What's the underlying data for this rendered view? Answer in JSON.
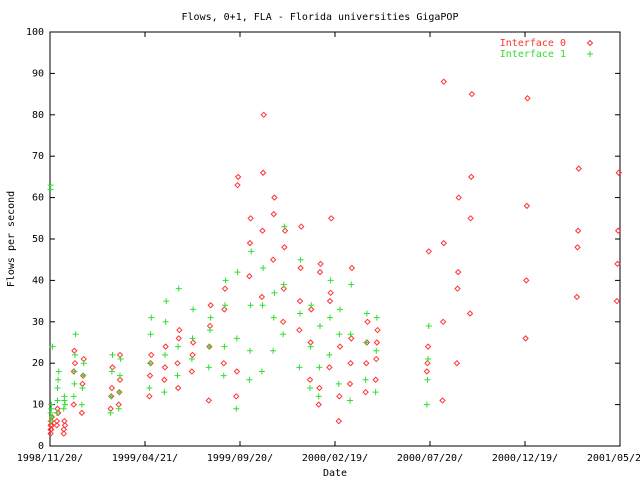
{
  "chart_data": {
    "type": "scatter",
    "title": "Flows, 0+1, FLA - Florida universities GigaPOP",
    "xlabel": "Date",
    "ylabel": "Flows per second",
    "ylim": [
      0,
      100
    ],
    "xlim": [
      "1998-11-20",
      "2001-05-20"
    ],
    "x_ticks": [
      "1998/11/20/",
      "1999/04/21/",
      "1999/09/20/",
      "2000/02/19/",
      "2000/07/20/",
      "2000/12/19/",
      "2001/05/20/"
    ],
    "y_ticks": [
      "0",
      "10",
      "20",
      "30",
      "40",
      "50",
      "60",
      "70",
      "80",
      "90",
      "100"
    ],
    "grid": false,
    "legend_position": "top-right",
    "series": [
      {
        "name": "Interface 0",
        "color": "#ff3333",
        "marker": "diamond",
        "x": [
          "1998-11-21",
          "1998-11-21",
          "1998-11-21",
          "1998-11-22",
          "1998-11-22",
          "1998-11-23",
          "1998-11-23",
          "1998-12-01",
          "1998-12-01",
          "1998-12-02",
          "1998-12-03",
          "1998-12-12",
          "1998-12-12",
          "1998-12-13",
          "1998-12-14",
          "1998-12-28",
          "1998-12-28",
          "1998-12-29",
          "1998-12-30",
          "1999-01-10",
          "1999-01-11",
          "1999-01-12",
          "1999-01-13",
          "1999-02-25",
          "1999-02-26",
          "1999-02-27",
          "1999-02-28",
          "1999-03-10",
          "1999-03-11",
          "1999-03-12",
          "1999-03-12",
          "1999-04-28",
          "1999-04-29",
          "1999-04-30",
          "1999-05-01",
          "1999-05-22",
          "1999-05-23",
          "1999-05-24",
          "1999-06-12",
          "1999-06-13",
          "1999-06-14",
          "1999-06-15",
          "1999-07-05",
          "1999-07-06",
          "1999-07-07",
          "1999-08-01",
          "1999-08-02",
          "1999-08-03",
          "1999-08-04",
          "1999-08-25",
          "1999-08-26",
          "1999-08-27",
          "1999-09-14",
          "1999-09-15",
          "1999-09-16",
          "1999-09-17",
          "1999-10-05",
          "1999-10-06",
          "1999-10-07",
          "1999-10-25",
          "1999-10-26",
          "1999-10-27",
          "1999-10-28",
          "1999-11-12",
          "1999-11-13",
          "1999-11-14",
          "1999-11-28",
          "1999-11-29",
          "1999-11-30",
          "1999-12-01",
          "1999-12-24",
          "1999-12-25",
          "1999-12-26",
          "1999-12-27",
          "2000-01-10",
          "2000-01-11",
          "2000-01-12",
          "2000-01-24",
          "2000-01-25",
          "2000-01-26",
          "2000-01-27",
          "2000-02-10",
          "2000-02-11",
          "2000-02-12",
          "2000-02-13",
          "2000-02-25",
          "2000-02-26",
          "2000-02-27",
          "2000-03-14",
          "2000-03-15",
          "2000-03-16",
          "2000-03-17",
          "2000-04-08",
          "2000-04-09",
          "2000-04-10",
          "2000-04-11",
          "2000-04-24",
          "2000-04-25",
          "2000-04-26",
          "2000-04-27",
          "2000-07-15",
          "2000-07-16",
          "2000-07-17",
          "2000-07-18",
          "2000-08-09",
          "2000-08-10",
          "2000-08-11",
          "2000-08-11",
          "2000-09-01",
          "2000-09-02",
          "2000-09-03",
          "2000-09-04",
          "2000-09-22",
          "2000-09-23",
          "2000-09-24",
          "2000-09-25",
          "2000-12-20",
          "2000-12-21",
          "2000-12-22",
          "2000-12-23",
          "2001-03-12",
          "2001-03-13",
          "2001-03-14",
          "2001-03-15",
          "2001-05-15",
          "2001-05-16",
          "2001-05-17",
          "2001-05-18"
        ],
        "y": [
          5,
          4,
          3,
          6,
          4,
          5,
          7,
          5,
          6,
          9,
          8,
          4,
          3,
          6,
          5,
          10,
          18,
          23,
          20,
          8,
          15,
          17,
          21,
          9,
          12,
          14,
          19,
          10,
          13,
          16,
          22,
          12,
          17,
          20,
          22,
          16,
          19,
          24,
          20,
          14,
          26,
          28,
          18,
          22,
          25,
          11,
          24,
          29,
          34,
          20,
          33,
          38,
          12,
          18,
          63,
          65,
          41,
          49,
          55,
          36,
          52,
          66,
          80,
          45,
          56,
          60,
          30,
          38,
          48,
          52,
          28,
          35,
          43,
          53,
          16,
          25,
          33,
          10,
          14,
          42,
          44,
          19,
          35,
          37,
          55,
          6,
          12,
          24,
          15,
          20,
          26,
          43,
          13,
          20,
          25,
          30,
          16,
          21,
          25,
          28,
          18,
          20,
          24,
          47,
          11,
          30,
          49,
          88,
          20,
          38,
          42,
          60,
          32,
          55,
          65,
          85,
          26,
          40,
          58,
          84,
          36,
          48,
          52,
          67,
          35,
          44,
          52,
          66
        ],
        "legend_entry": "Interface 0"
      },
      {
        "name": "Interface 1",
        "color": "#33dd33",
        "marker": "plus",
        "x": [
          "1998-11-21",
          "1998-11-21",
          "1998-11-22",
          "1998-11-22",
          "1998-11-23",
          "1998-11-24",
          "1998-12-01",
          "1998-12-02",
          "1998-12-02",
          "1998-12-03",
          "1998-12-04",
          "1998-12-12",
          "1998-12-13",
          "1998-12-13",
          "1998-12-14",
          "1998-12-28",
          "1998-12-29",
          "1998-12-29",
          "1998-12-30",
          "1998-12-31",
          "1999-01-10",
          "1999-01-11",
          "1999-01-12",
          "1999-01-13",
          "1999-02-25",
          "1999-02-26",
          "1999-02-27",
          "1999-02-28",
          "1999-03-10",
          "1999-03-11",
          "1999-03-12",
          "1999-03-13",
          "1999-04-28",
          "1999-04-29",
          "1999-04-30",
          "1999-05-01",
          "1999-05-22",
          "1999-05-23",
          "1999-05-24",
          "1999-05-25",
          "1999-06-12",
          "1999-06-13",
          "1999-06-14",
          "1999-07-05",
          "1999-07-06",
          "1999-07-07",
          "1999-08-01",
          "1999-08-02",
          "1999-08-03",
          "1999-08-04",
          "1999-08-25",
          "1999-08-26",
          "1999-08-27",
          "1999-08-28",
          "1999-09-14",
          "1999-09-15",
          "1999-09-16",
          "1999-10-05",
          "1999-10-06",
          "1999-10-07",
          "1999-10-08",
          "1999-10-25",
          "1999-10-26",
          "1999-10-27",
          "1999-11-12",
          "1999-11-13",
          "1999-11-14",
          "1999-11-28",
          "1999-11-29",
          "1999-11-30",
          "1999-12-24",
          "1999-12-25",
          "1999-12-26",
          "2000-01-10",
          "2000-01-11",
          "2000-01-12",
          "2000-01-24",
          "2000-01-25",
          "2000-01-26",
          "2000-02-10",
          "2000-02-11",
          "2000-02-12",
          "2000-02-25",
          "2000-02-26",
          "2000-02-27",
          "2000-03-14",
          "2000-03-15",
          "2000-03-16",
          "2000-04-08",
          "2000-04-09",
          "2000-04-10",
          "2000-04-24",
          "2000-04-25",
          "2000-04-26",
          "2000-07-15",
          "2000-07-16",
          "2000-07-17",
          "2000-07-18"
        ],
        "y": [
          6,
          8,
          10,
          9,
          7,
          24,
          8,
          11,
          14,
          16,
          18,
          9,
          11,
          12,
          10,
          12,
          15,
          18,
          22,
          27,
          10,
          14,
          17,
          20,
          8,
          12,
          18,
          22,
          9,
          13,
          17,
          21,
          14,
          20,
          27,
          31,
          13,
          22,
          30,
          35,
          17,
          24,
          38,
          21,
          26,
          33,
          19,
          24,
          28,
          31,
          17,
          24,
          34,
          40,
          9,
          26,
          42,
          16,
          23,
          34,
          47,
          18,
          34,
          43,
          23,
          31,
          37,
          27,
          39,
          53,
          19,
          32,
          45,
          14,
          24,
          34,
          12,
          19,
          29,
          22,
          31,
          40,
          15,
          27,
          33,
          11,
          27,
          39,
          16,
          25,
          32,
          13,
          23,
          31,
          10,
          16,
          21,
          29
        ]
      },
      {
        "name": "",
        "color": "#33dd33",
        "marker": "plus",
        "x": [
          "1998-11-21",
          "1998-11-21"
        ],
        "y": [
          62,
          63
        ]
      }
    ]
  }
}
